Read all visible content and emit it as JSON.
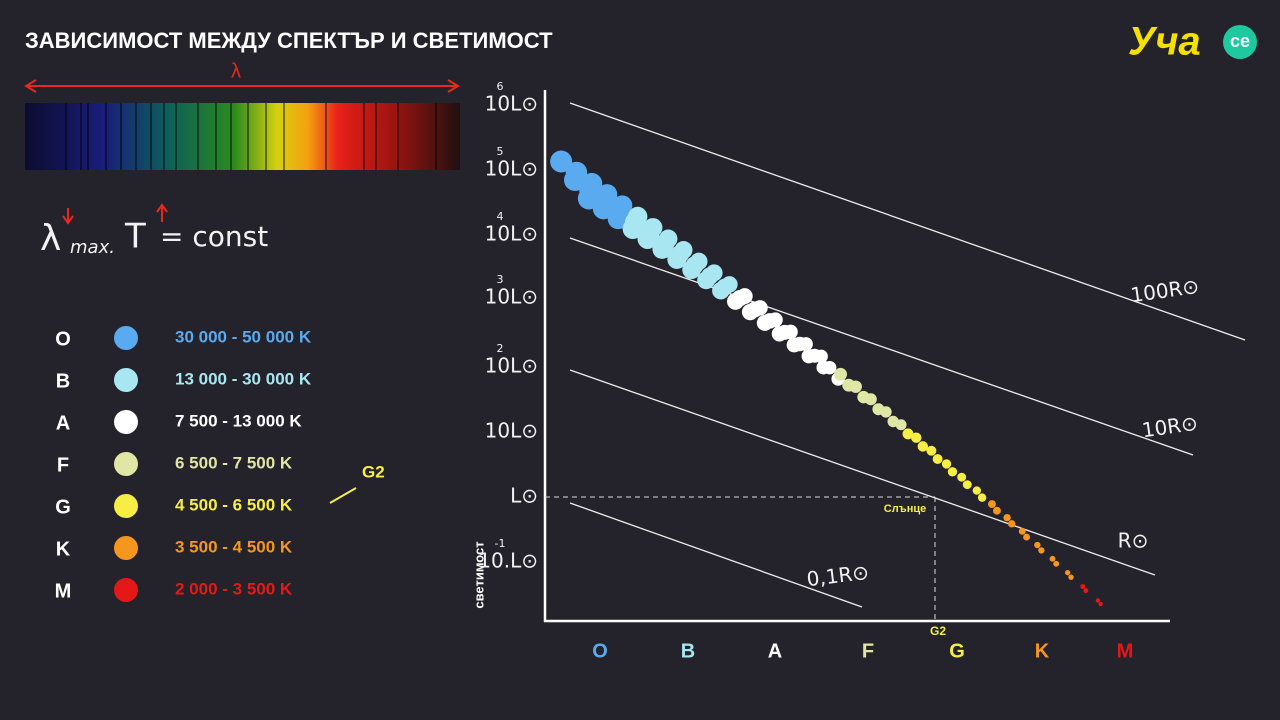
{
  "header": {
    "title": "ЗАВИСИМОСТ МЕЖДУ СПЕКТЪР И СВЕТИМОСТ",
    "logo": "Уча",
    "logo_badge": "ce"
  },
  "spectrum": {
    "label": "λ"
  },
  "formula": {
    "lambda": "λ",
    "sub": "max.",
    "t": "T",
    "rest": "= const"
  },
  "classes": [
    {
      "letter": "O",
      "range": "30 000 - 50 000 K",
      "color": "#5aaaf0"
    },
    {
      "letter": "B",
      "range": "13 000 - 30 000 K",
      "color": "#a8e6f2"
    },
    {
      "letter": "A",
      "range": "7 500 - 13 000 K",
      "color": "#ffffff"
    },
    {
      "letter": "F",
      "range": "6 500 - 7 500 K",
      "color": "#dfe6a6"
    },
    {
      "letter": "G",
      "range": "4 500 - 6 500 K",
      "color": "#f6ee45"
    },
    {
      "letter": "K",
      "range": "3 500 - 4 500 K",
      "color": "#f5961e"
    },
    {
      "letter": "M",
      "range": "2 000 - 3 500 K",
      "color": "#e51818"
    }
  ],
  "g2_note": "G2",
  "diagram": {
    "y_axis_label": "светимост",
    "y_labels": [
      {
        "base": "10L⊙",
        "exp": "6"
      },
      {
        "base": "10L⊙",
        "exp": "5"
      },
      {
        "base": "10L⊙",
        "exp": "4"
      },
      {
        "base": "10L⊙",
        "exp": "3"
      },
      {
        "base": "10L⊙",
        "exp": "2"
      },
      {
        "base": "10L⊙"
      },
      {
        "base": "L⊙"
      },
      {
        "base": "10.L⊙",
        "exp": "-1"
      }
    ],
    "radius_lines": [
      "100R⊙",
      "10R⊙",
      "R⊙",
      "0,1R⊙"
    ],
    "sun_label": "Слънце",
    "sun_class": "G2"
  }
}
